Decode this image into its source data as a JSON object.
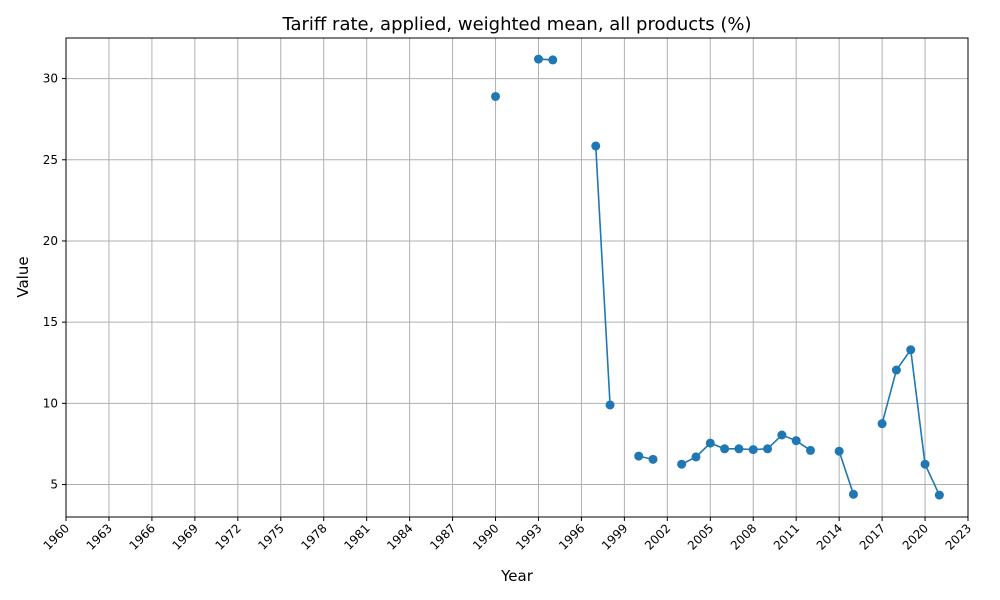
{
  "chart_data": {
    "type": "line",
    "title": "Tariff rate, applied, weighted mean, all products (%)",
    "xlabel": "Year",
    "ylabel": "Value",
    "xlim": [
      1960,
      2023
    ],
    "ylim": [
      3,
      32.5
    ],
    "x_ticks": [
      1960,
      1963,
      1966,
      1969,
      1972,
      1975,
      1978,
      1981,
      1984,
      1987,
      1990,
      1993,
      1996,
      1999,
      2002,
      2005,
      2008,
      2011,
      2014,
      2017,
      2020,
      2023
    ],
    "y_ticks": [
      5,
      10,
      15,
      20,
      25,
      30
    ],
    "grid": true,
    "color": "#1f77b4",
    "series": [
      {
        "points": [
          [
            1990,
            28.9
          ],
          [
            1993,
            31.2
          ],
          [
            1994,
            31.15
          ],
          [
            1997,
            25.85
          ],
          [
            1998,
            9.9
          ],
          [
            2000,
            6.75
          ],
          [
            2001,
            6.55
          ],
          [
            2003,
            6.25
          ],
          [
            2004,
            6.7
          ],
          [
            2005,
            7.55
          ],
          [
            2006,
            7.2
          ],
          [
            2007,
            7.2
          ],
          [
            2008,
            7.15
          ],
          [
            2009,
            7.2
          ],
          [
            2010,
            8.05
          ],
          [
            2011,
            7.7
          ],
          [
            2012,
            7.1
          ],
          [
            2014,
            7.05
          ],
          [
            2015,
            4.4
          ],
          [
            2017,
            8.75
          ],
          [
            2018,
            12.05
          ],
          [
            2019,
            13.3
          ],
          [
            2020,
            6.25
          ],
          [
            2021,
            4.35
          ]
        ]
      }
    ]
  }
}
